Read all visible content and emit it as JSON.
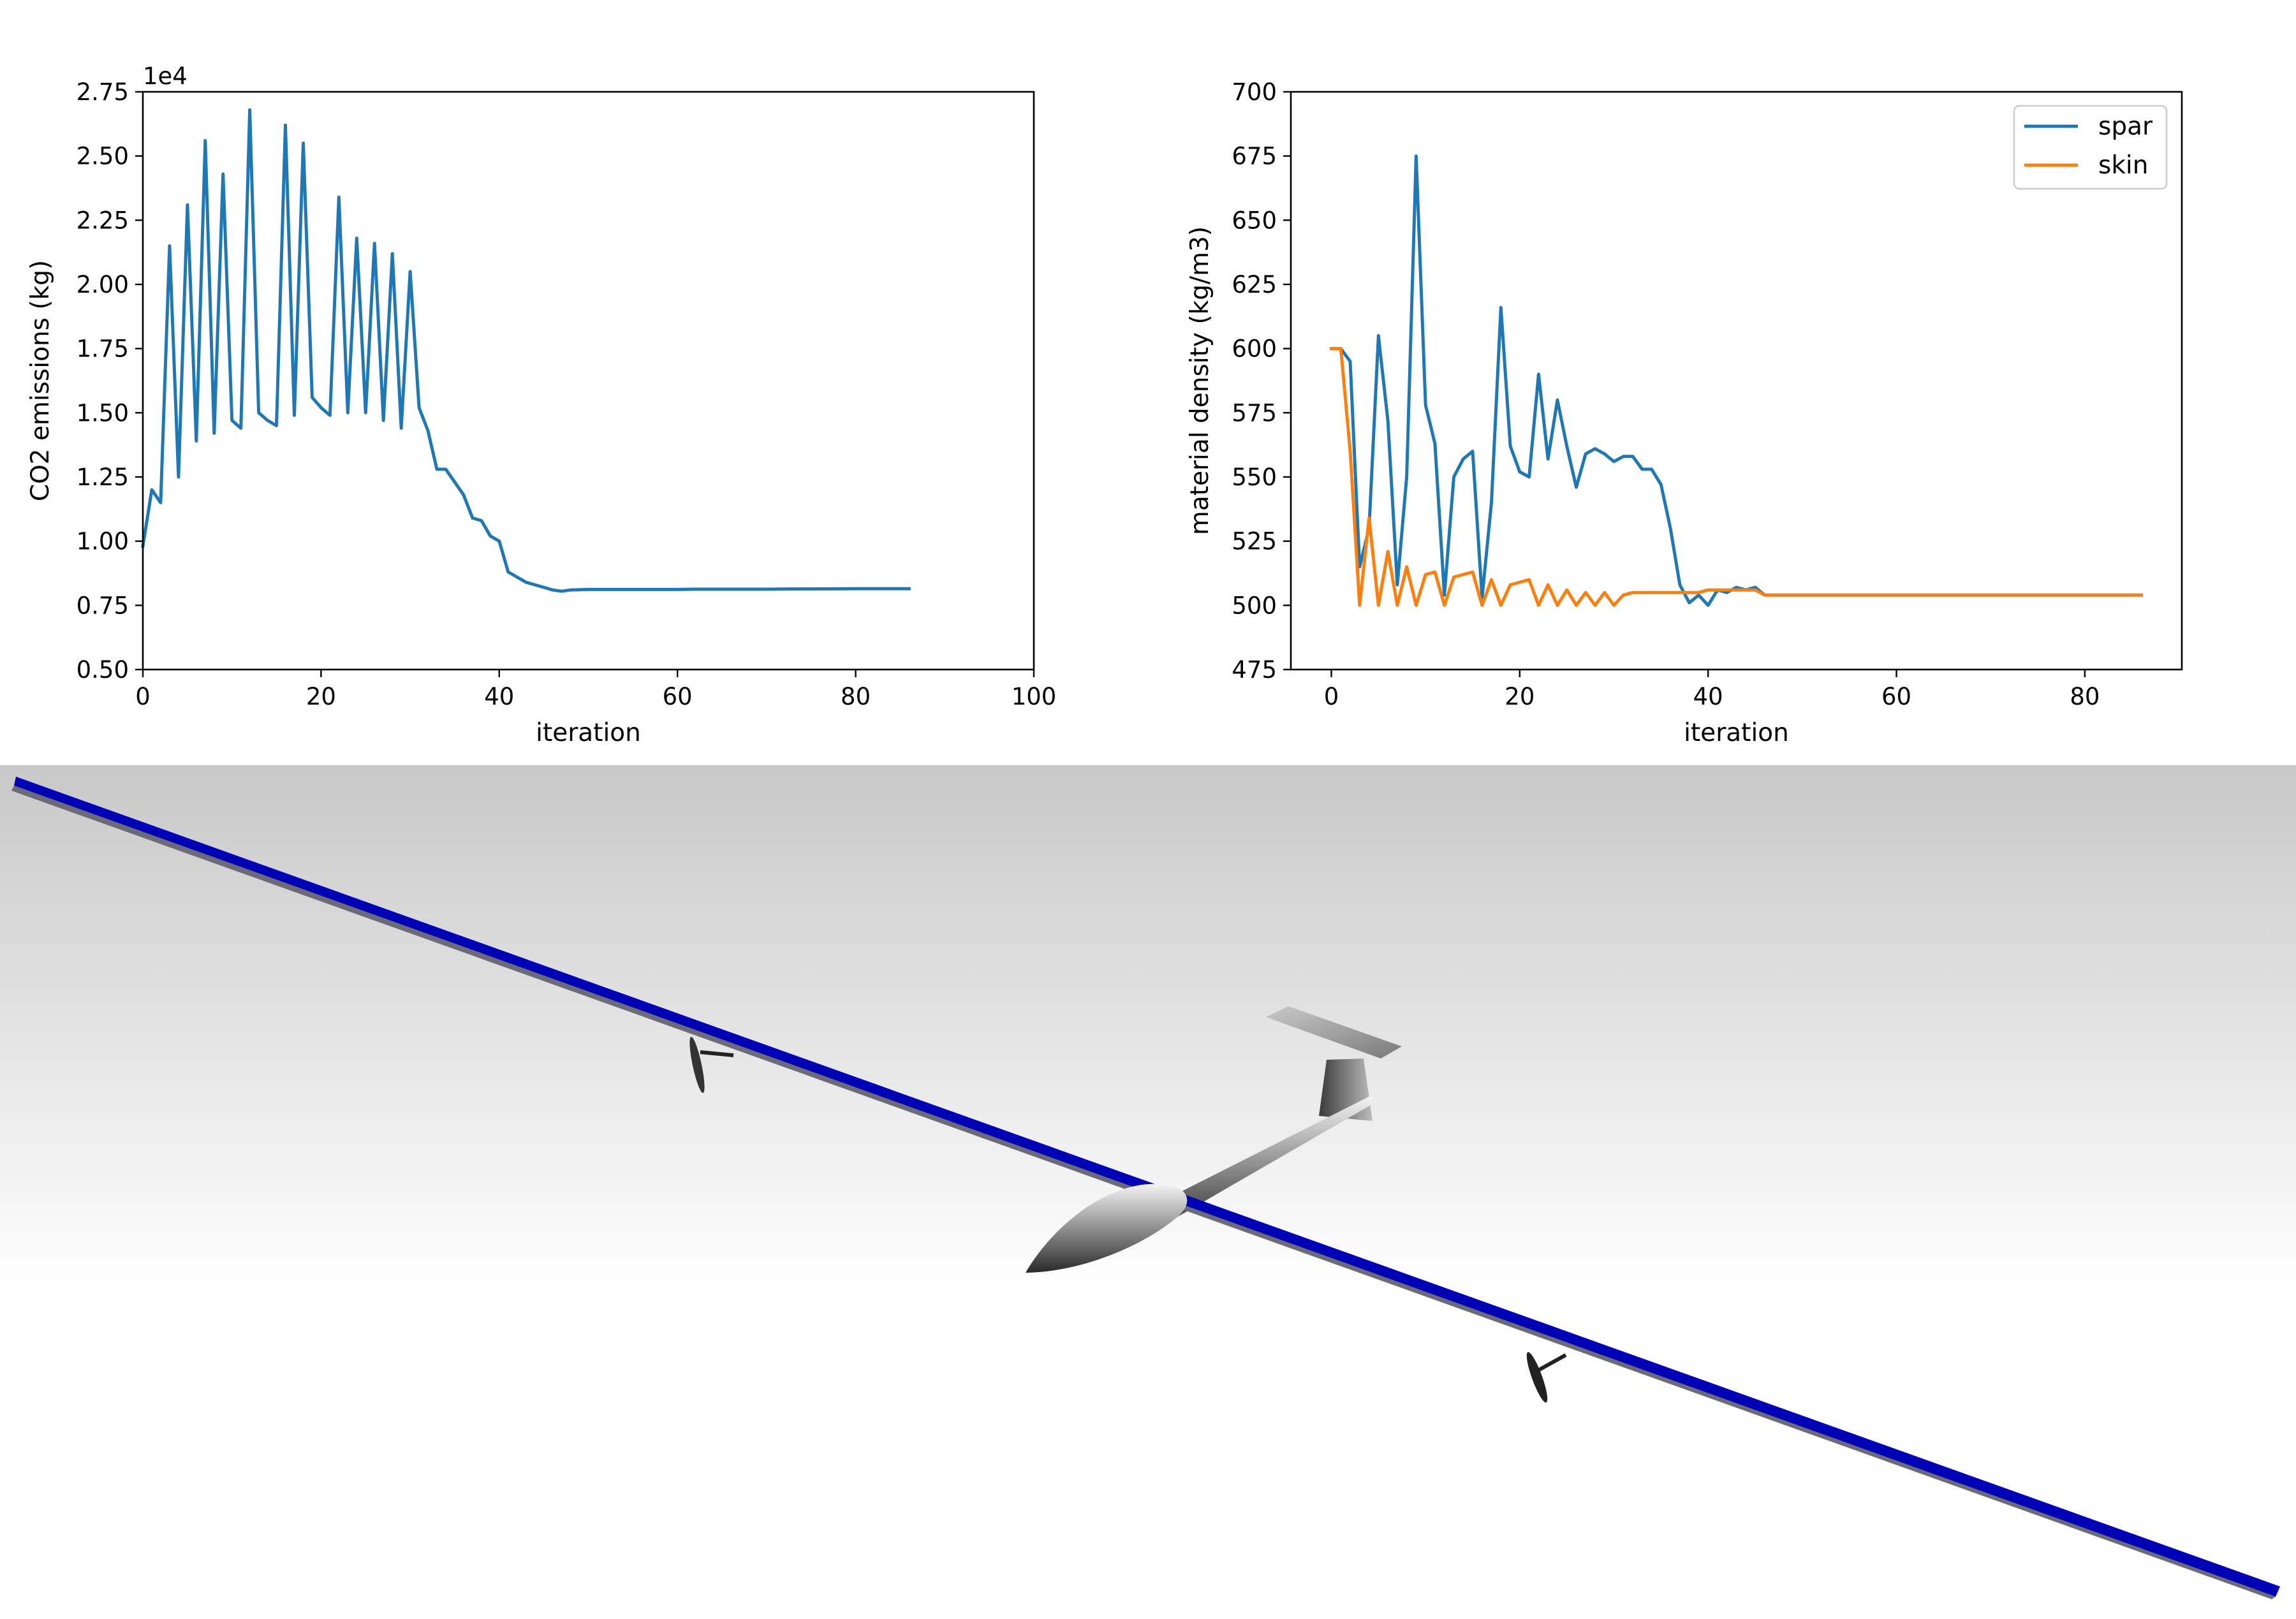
{
  "chart_data": [
    {
      "type": "line",
      "xlabel": "iteration",
      "ylabel": "CO2 emissions (kg)",
      "offset_label": "1e4",
      "xlim": [
        0,
        100
      ],
      "ylim": [
        0.5,
        2.75
      ],
      "xticks": [
        "0",
        "20",
        "40",
        "60",
        "80",
        "100"
      ],
      "xtick_values": [
        0,
        20,
        40,
        60,
        80,
        100
      ],
      "yticks": [
        "0.50",
        "0.75",
        "1.00",
        "1.25",
        "1.50",
        "1.75",
        "2.00",
        "2.25",
        "2.50",
        "2.75"
      ],
      "ytick_values": [
        0.5,
        0.75,
        1.0,
        1.25,
        1.5,
        1.75,
        2.0,
        2.25,
        2.5,
        2.75
      ],
      "series": [
        {
          "name": "CO2",
          "color": "#1f77b4",
          "x": [
            0,
            1,
            2,
            3,
            4,
            5,
            6,
            7,
            8,
            9,
            10,
            11,
            12,
            13,
            14,
            15,
            16,
            17,
            18,
            19,
            20,
            21,
            22,
            23,
            24,
            25,
            26,
            27,
            28,
            29,
            30,
            31,
            32,
            33,
            34,
            35,
            36,
            37,
            38,
            39,
            40,
            41,
            42,
            43,
            44,
            45,
            46,
            47,
            48,
            50,
            55,
            60,
            62,
            65,
            70,
            73,
            75,
            80,
            85,
            86
          ],
          "values": [
            0.98,
            1.2,
            1.15,
            2.15,
            1.25,
            2.31,
            1.39,
            2.56,
            1.42,
            2.43,
            1.47,
            1.44,
            2.68,
            1.5,
            1.47,
            1.45,
            2.62,
            1.49,
            2.55,
            1.56,
            1.52,
            1.49,
            2.34,
            1.5,
            2.18,
            1.5,
            2.16,
            1.47,
            2.12,
            1.44,
            2.05,
            1.52,
            1.43,
            1.28,
            1.28,
            1.23,
            1.18,
            1.09,
            1.08,
            1.02,
            1.0,
            0.88,
            0.86,
            0.84,
            0.83,
            0.82,
            0.81,
            0.805,
            0.81,
            0.812,
            0.812,
            0.812,
            0.813,
            0.813,
            0.813,
            0.814,
            0.814,
            0.815,
            0.815,
            0.815
          ]
        }
      ]
    },
    {
      "type": "line",
      "xlabel": "iteration",
      "ylabel": "material density (kg/m3)",
      "xlim": [
        -4.3,
        90.3
      ],
      "ylim": [
        475,
        700
      ],
      "xticks": [
        "0",
        "20",
        "40",
        "60",
        "80"
      ],
      "xtick_values": [
        0,
        20,
        40,
        60,
        80
      ],
      "yticks": [
        "475",
        "500",
        "525",
        "550",
        "575",
        "600",
        "625",
        "650",
        "675",
        "700"
      ],
      "ytick_values": [
        475,
        500,
        525,
        550,
        575,
        600,
        625,
        650,
        675,
        700
      ],
      "legend_position": "top-right",
      "series": [
        {
          "name": "spar",
          "color": "#1f77b4",
          "x": [
            0,
            1,
            2,
            3,
            4,
            5,
            6,
            7,
            8,
            9,
            10,
            11,
            12,
            13,
            14,
            15,
            16,
            17,
            18,
            19,
            20,
            21,
            22,
            23,
            24,
            25,
            26,
            27,
            28,
            29,
            30,
            31,
            32,
            33,
            34,
            35,
            36,
            37,
            38,
            39,
            40,
            41,
            42,
            43,
            44,
            45,
            46,
            50,
            60,
            70,
            80,
            86
          ],
          "values": [
            600,
            600,
            595,
            515,
            530,
            605,
            572,
            508,
            550,
            675,
            578,
            563,
            504,
            550,
            557,
            560,
            503,
            540,
            616,
            562,
            552,
            550,
            590,
            557,
            580,
            562,
            546,
            559,
            561,
            559,
            556,
            558,
            558,
            553,
            553,
            547,
            530,
            508,
            501,
            504,
            500,
            506,
            505,
            507,
            506,
            507,
            504,
            504,
            504,
            504,
            504,
            504
          ]
        },
        {
          "name": "skin",
          "color": "#ff7f0e",
          "x": [
            0,
            1,
            2,
            3,
            4,
            5,
            6,
            7,
            8,
            9,
            10,
            11,
            12,
            13,
            14,
            15,
            16,
            17,
            18,
            19,
            20,
            21,
            22,
            23,
            24,
            25,
            26,
            27,
            28,
            29,
            30,
            31,
            32,
            33,
            34,
            35,
            36,
            37,
            38,
            39,
            40,
            41,
            42,
            43,
            44,
            45,
            46,
            50,
            60,
            70,
            80,
            86
          ],
          "values": [
            600,
            600,
            560,
            500,
            534,
            500,
            521,
            500,
            515,
            500,
            512,
            513,
            500,
            511,
            512,
            513,
            500,
            510,
            500,
            508,
            509,
            510,
            500,
            508,
            500,
            506,
            500,
            505,
            500,
            505,
            500,
            504,
            505,
            505,
            505,
            505,
            505,
            505,
            505,
            505,
            506,
            506,
            506,
            506,
            506,
            506,
            504,
            504,
            504,
            504,
            504,
            504
          ]
        }
      ]
    }
  ],
  "render": {
    "wing_color": "#0000b4",
    "sky_top": "#c8c8c8",
    "sky_bottom": "#ffffff"
  }
}
